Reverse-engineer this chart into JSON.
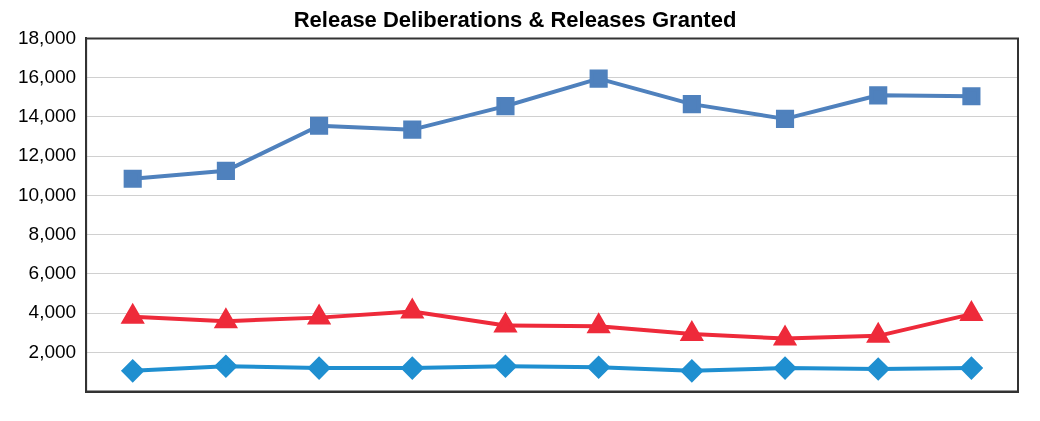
{
  "chart_data": {
    "type": "line",
    "title": "Release Deliberations & Releases Granted",
    "categories": [
      null,
      null,
      null,
      null,
      null,
      null,
      null,
      null,
      null,
      null
    ],
    "series": [
      {
        "color": "#4f81bd",
        "marker": "square",
        "values": [
          10850,
          11250,
          13550,
          13350,
          14550,
          15950,
          14650,
          13900,
          15100,
          15050
        ]
      },
      {
        "color": "#ee2a3a",
        "marker": "triangle",
        "values": [
          3810,
          3590,
          3770,
          4080,
          3370,
          3330,
          2930,
          2700,
          2840,
          3950
        ]
      },
      {
        "color": "#1f8fd0",
        "marker": "diamond",
        "values": [
          1060,
          1290,
          1200,
          1200,
          1290,
          1240,
          1060,
          1200,
          1150,
          1200
        ]
      }
    ],
    "ylim": [
      0,
      18000
    ],
    "yticks": [
      {
        "value": 2000,
        "label": "2,000"
      },
      {
        "value": 4000,
        "label": "4,000"
      },
      {
        "value": 6000,
        "label": "6,000"
      },
      {
        "value": 8000,
        "label": "8,000"
      },
      {
        "value": 10000,
        "label": "10,000"
      },
      {
        "value": 12000,
        "label": "12,000"
      },
      {
        "value": 14000,
        "label": "14,000"
      },
      {
        "value": 16000,
        "label": "16,000"
      },
      {
        "value": 18000,
        "label": "18,000"
      }
    ],
    "grid": "y",
    "legend": false
  }
}
